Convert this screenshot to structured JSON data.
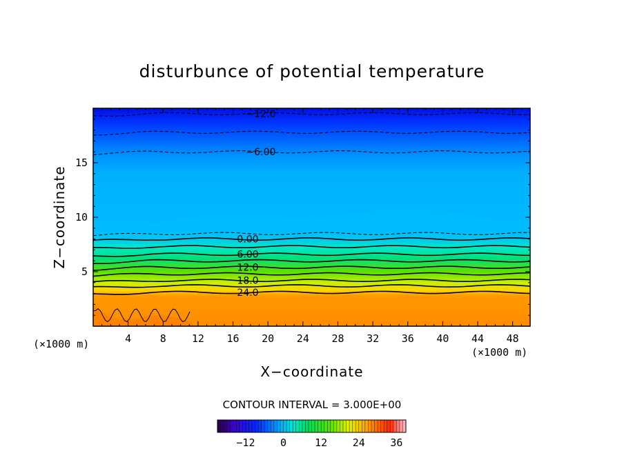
{
  "chart_data": {
    "type": "contour",
    "title": "disturbunce of potential temperature",
    "xlabel": "X−coordinate",
    "ylabel": "Z−coordinate",
    "x_unit": "(×1000 m)",
    "y_unit": "(×1000 m)",
    "xlim": [
      0,
      50
    ],
    "ylim": [
      0,
      20
    ],
    "x_ticks": [
      "4",
      "8",
      "12",
      "16",
      "20",
      "24",
      "28",
      "32",
      "36",
      "40",
      "44",
      "48"
    ],
    "y_ticks": [
      "5",
      "10",
      "15"
    ],
    "contour_interval_text": "CONTOUR INTERVAL = 3.000E+00",
    "colorbar": {
      "min": -21,
      "max": 39,
      "ticks": [
        "−12",
        "0",
        "12",
        "24",
        "36"
      ]
    },
    "contour_labels": [
      "−12.0",
      "−6.00",
      "0.00",
      "6.00",
      "12.0",
      "18.0",
      "24.0"
    ],
    "contours": [
      {
        "level": -12,
        "z_km": 19.5,
        "label": "−12.0"
      },
      {
        "level": -9,
        "z_km": 17.8,
        "label": ""
      },
      {
        "level": -6,
        "z_km": 16.0,
        "label": "−6.00"
      },
      {
        "level": -3,
        "z_km": 8.5,
        "label": ""
      },
      {
        "level": 0,
        "z_km": 8.0,
        "label": "0.00"
      },
      {
        "level": 3,
        "z_km": 7.3,
        "label": ""
      },
      {
        "level": 6,
        "z_km": 6.6,
        "label": "6.00"
      },
      {
        "level": 9,
        "z_km": 6.0,
        "label": ""
      },
      {
        "level": 12,
        "z_km": 5.4,
        "label": "12.0"
      },
      {
        "level": 15,
        "z_km": 4.8,
        "label": ""
      },
      {
        "level": 18,
        "z_km": 4.2,
        "label": "18.0"
      },
      {
        "level": 21,
        "z_km": 3.7,
        "label": ""
      },
      {
        "level": 24,
        "z_km": 3.1,
        "label": "24.0"
      }
    ]
  }
}
